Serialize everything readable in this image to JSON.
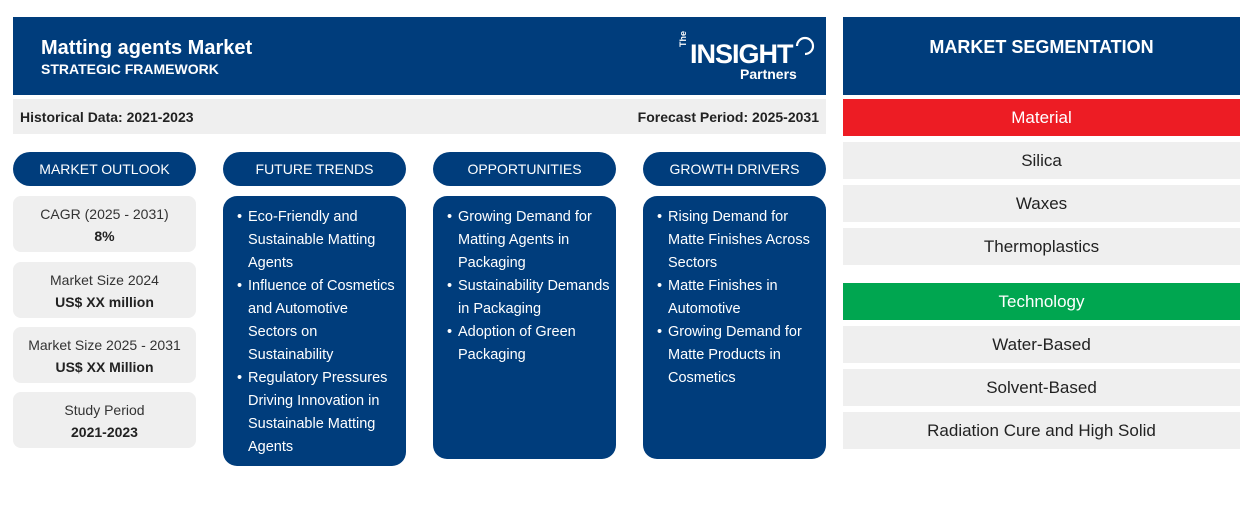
{
  "header": {
    "title": "Matting agents Market",
    "subtitle": "STRATEGIC FRAMEWORK",
    "logo": {
      "the": "The",
      "insight": "INSIGHT",
      "partners": "Partners"
    }
  },
  "dates": {
    "historical": "Historical Data: 2021-2023",
    "forecast": "Forecast Period: 2025-2031"
  },
  "columns": {
    "outlook": "MARKET OUTLOOK",
    "trends": "FUTURE TRENDS",
    "opportunities": "OPPORTUNITIES",
    "drivers": "GROWTH DRIVERS"
  },
  "outlook": [
    {
      "label": "CAGR (2025 - 2031)",
      "value": "8%"
    },
    {
      "label": "Market Size 2024",
      "value": "US$ XX million"
    },
    {
      "label": "Market Size 2025 - 2031",
      "value": "US$ XX Million"
    },
    {
      "label": "Study Period",
      "value": "2021-2023"
    }
  ],
  "trends": [
    "Eco-Friendly and Sustainable Matting Agents",
    "Influence of Cosmetics and Automotive Sectors on Sustainability",
    "Regulatory Pressures Driving Innovation in Sustainable Matting Agents"
  ],
  "opportunities": [
    "Growing Demand for Matting Agents in Packaging",
    "Sustainability Demands in Packaging",
    "Adoption of Green Packaging"
  ],
  "drivers": [
    "Rising Demand for Matte Finishes Across Sectors",
    "Matte Finishes in Automotive",
    "Growing Demand for Matte Products in Cosmetics"
  ],
  "segmentation": {
    "title": "MARKET SEGMENTATION",
    "material": {
      "label": "Material",
      "color": "#ed1c24",
      "items": [
        "Silica",
        "Waxes",
        "Thermoplastics"
      ]
    },
    "technology": {
      "label": "Technology",
      "color": "#00a650",
      "items": [
        "Water-Based",
        "Solvent-Based",
        "Radiation Cure and High Solid"
      ]
    }
  },
  "colors": {
    "primary": "#003d7c",
    "panel": "#efefef"
  }
}
